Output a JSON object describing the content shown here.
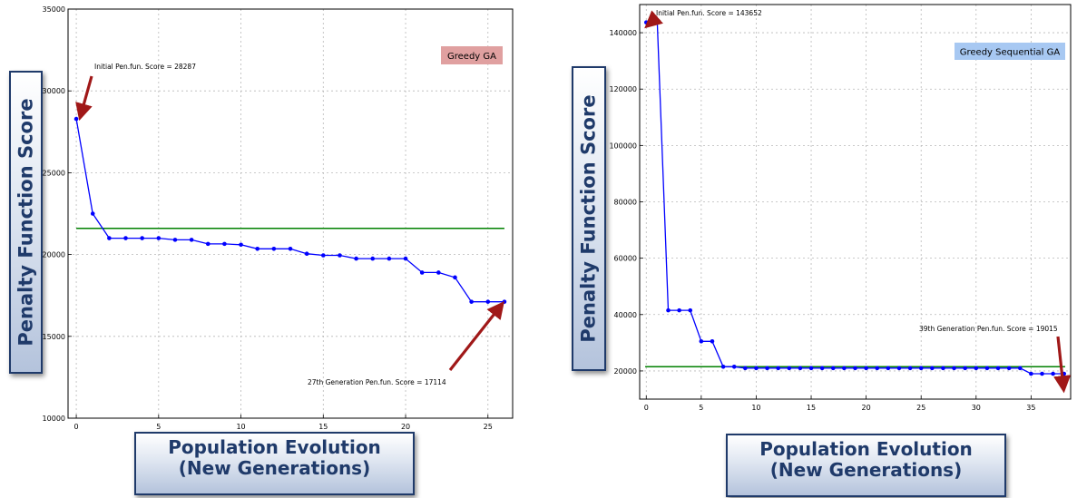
{
  "chart_data": [
    {
      "type": "line",
      "legend": "Greedy GA",
      "legend_color": "#e0a0a0",
      "ylabel": "Penalty Function Score",
      "xlabel_lines": [
        "Population Evolution",
        "(New Generations)"
      ],
      "xlim": [
        -0.5,
        26.5
      ],
      "ylim": [
        10000,
        35000
      ],
      "xticks": [
        0,
        5,
        10,
        15,
        20,
        25
      ],
      "yticks": [
        10000,
        15000,
        20000,
        25000,
        30000,
        35000
      ],
      "grid": true,
      "x": [
        0,
        1,
        2,
        3,
        4,
        5,
        6,
        7,
        8,
        9,
        10,
        11,
        12,
        13,
        14,
        15,
        16,
        17,
        18,
        19,
        20,
        21,
        22,
        23,
        24,
        25,
        26
      ],
      "y": [
        28287,
        22500,
        21000,
        21000,
        21000,
        21000,
        20900,
        20900,
        20650,
        20650,
        20600,
        20350,
        20350,
        20350,
        20050,
        19950,
        19950,
        19750,
        19750,
        19750,
        19750,
        18900,
        18900,
        18600,
        17114,
        17114,
        17114
      ],
      "reference_line": 21600,
      "series_color": "#0000ff",
      "reference_color": "#008000",
      "annotations": [
        {
          "text": "Initial Pen.fun. Score = 28287"
        },
        {
          "text": "27th Generation Pen.fun. Score = 17114"
        }
      ]
    },
    {
      "type": "line",
      "legend": "Greedy Sequential GA",
      "legend_color": "#a7c8f2",
      "ylabel": "Penalty Function Score",
      "xlabel_lines": [
        "Population Evolution",
        "(New Generations)"
      ],
      "xlim": [
        -0.6,
        38.6
      ],
      "ylim": [
        10000,
        150000
      ],
      "xticks": [
        0,
        5,
        10,
        15,
        20,
        25,
        30,
        35
      ],
      "yticks": [
        20000,
        40000,
        60000,
        80000,
        100000,
        120000,
        140000
      ],
      "grid": true,
      "x": [
        0,
        1,
        2,
        3,
        4,
        5,
        6,
        7,
        8,
        9,
        10,
        11,
        12,
        13,
        14,
        15,
        16,
        17,
        18,
        19,
        20,
        21,
        22,
        23,
        24,
        25,
        26,
        27,
        28,
        29,
        30,
        31,
        32,
        33,
        34,
        35,
        36,
        37,
        38
      ],
      "y": [
        143652,
        143652,
        41500,
        41500,
        41500,
        30500,
        30500,
        21500,
        21500,
        21000,
        21000,
        21000,
        21000,
        21000,
        21000,
        21000,
        21000,
        21000,
        21000,
        21000,
        21000,
        21000,
        21000,
        21000,
        21000,
        21000,
        21000,
        21000,
        21000,
        21000,
        21000,
        21000,
        21000,
        21000,
        21000,
        19015,
        19015,
        19015,
        19015
      ],
      "reference_line": 21500,
      "series_color": "#0000ff",
      "reference_color": "#008000",
      "annotations": [
        {
          "text": "Initial Pen.fun. Score = 143652"
        },
        {
          "text": "39th Generation Pen.fun. Score = 19015"
        }
      ]
    }
  ]
}
